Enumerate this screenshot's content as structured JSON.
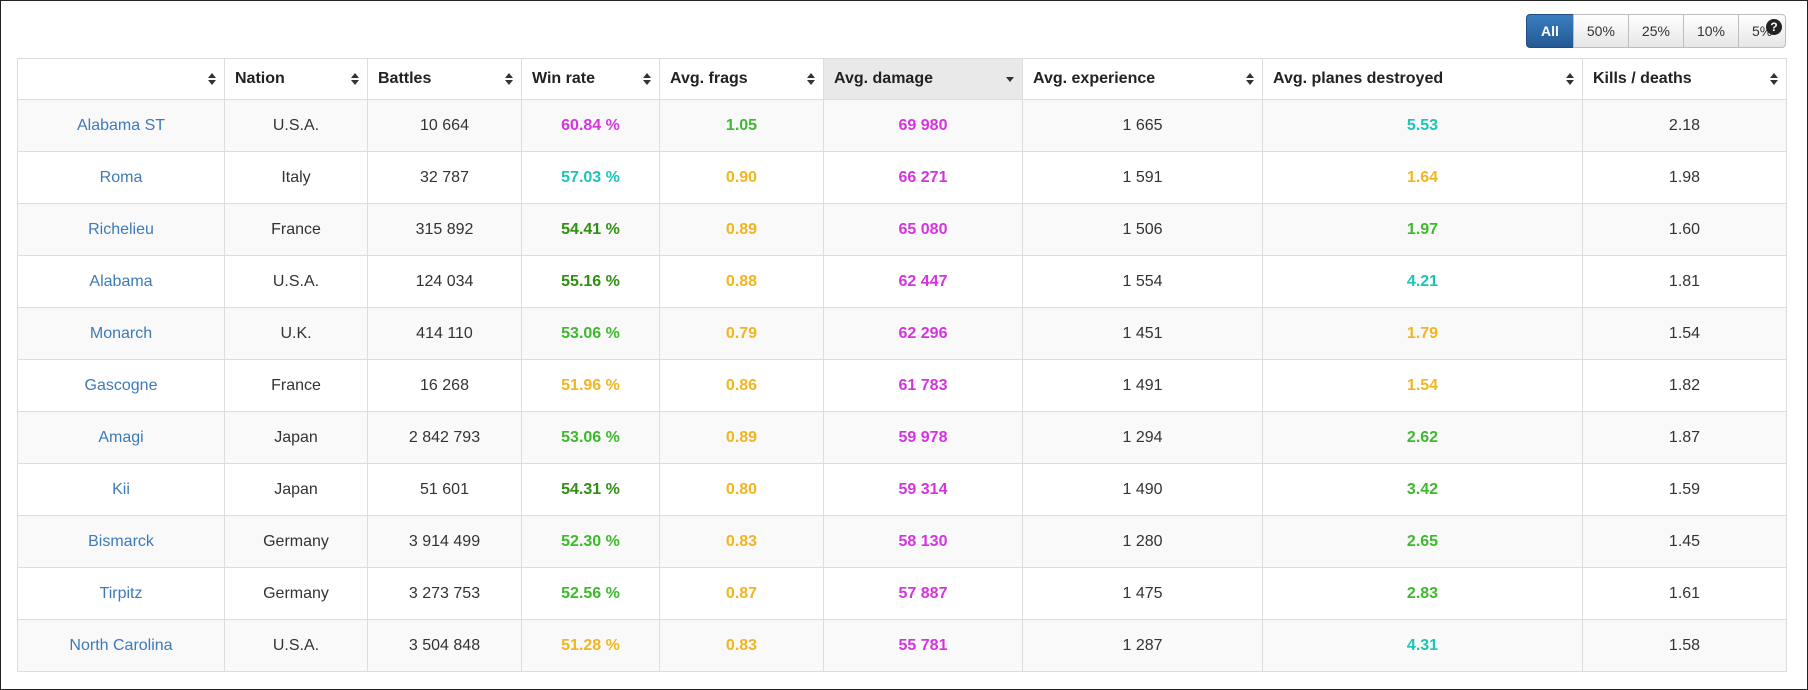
{
  "filters": {
    "buttons": [
      "All",
      "50%",
      "25%",
      "10%",
      "5%"
    ],
    "active": "All"
  },
  "help": {
    "icon": "question-circle-icon",
    "glyph": "?"
  },
  "colors": {
    "purple": "#d633e0",
    "teal": "#1cc4b8",
    "green": "#3cba2c",
    "dark_green": "#2f8f12",
    "yellow": "#f2b51f",
    "link": "#3d7ab8",
    "active_button": "#2a6aaa"
  },
  "table": {
    "headers": [
      "",
      "Nation",
      "Battles",
      "Win rate",
      "Avg. frags",
      "Avg. damage",
      "Avg. experience",
      "Avg. planes destroyed",
      "Kills / deaths"
    ],
    "sorted_column": "Avg. damage",
    "sort_direction": "desc",
    "rows": [
      {
        "ship": "Alabama ST",
        "nation": "U.S.A.",
        "battles": "10 664",
        "win_rate": "60.84 %",
        "win_rate_color": "purple",
        "frags": "1.05",
        "frags_color": "green",
        "damage": "69 980",
        "damage_color": "purple",
        "experience": "1 665",
        "planes": "5.53",
        "planes_color": "teal",
        "kd": "2.18"
      },
      {
        "ship": "Roma",
        "nation": "Italy",
        "battles": "32 787",
        "win_rate": "57.03 %",
        "win_rate_color": "teal",
        "frags": "0.90",
        "frags_color": "yellow",
        "damage": "66 271",
        "damage_color": "purple",
        "experience": "1 591",
        "planes": "1.64",
        "planes_color": "yellow",
        "kd": "1.98"
      },
      {
        "ship": "Richelieu",
        "nation": "France",
        "battles": "315 892",
        "win_rate": "54.41 %",
        "win_rate_color": "dark_green",
        "frags": "0.89",
        "frags_color": "yellow",
        "damage": "65 080",
        "damage_color": "purple",
        "experience": "1 506",
        "planes": "1.97",
        "planes_color": "green",
        "kd": "1.60"
      },
      {
        "ship": "Alabama",
        "nation": "U.S.A.",
        "battles": "124 034",
        "win_rate": "55.16 %",
        "win_rate_color": "dark_green",
        "frags": "0.88",
        "frags_color": "yellow",
        "damage": "62 447",
        "damage_color": "purple",
        "experience": "1 554",
        "planes": "4.21",
        "planes_color": "teal",
        "kd": "1.81"
      },
      {
        "ship": "Monarch",
        "nation": "U.K.",
        "battles": "414 110",
        "win_rate": "53.06 %",
        "win_rate_color": "green",
        "frags": "0.79",
        "frags_color": "yellow",
        "damage": "62 296",
        "damage_color": "purple",
        "experience": "1 451",
        "planes": "1.79",
        "planes_color": "yellow",
        "kd": "1.54"
      },
      {
        "ship": "Gascogne",
        "nation": "France",
        "battles": "16 268",
        "win_rate": "51.96 %",
        "win_rate_color": "yellow",
        "frags": "0.86",
        "frags_color": "yellow",
        "damage": "61 783",
        "damage_color": "purple",
        "experience": "1 491",
        "planes": "1.54",
        "planes_color": "yellow",
        "kd": "1.82"
      },
      {
        "ship": "Amagi",
        "nation": "Japan",
        "battles": "2 842 793",
        "win_rate": "53.06 %",
        "win_rate_color": "green",
        "frags": "0.89",
        "frags_color": "yellow",
        "damage": "59 978",
        "damage_color": "purple",
        "experience": "1 294",
        "planes": "2.62",
        "planes_color": "green",
        "kd": "1.87"
      },
      {
        "ship": "Kii",
        "nation": "Japan",
        "battles": "51 601",
        "win_rate": "54.31 %",
        "win_rate_color": "dark_green",
        "frags": "0.80",
        "frags_color": "yellow",
        "damage": "59 314",
        "damage_color": "purple",
        "experience": "1 490",
        "planes": "3.42",
        "planes_color": "green",
        "kd": "1.59"
      },
      {
        "ship": "Bismarck",
        "nation": "Germany",
        "battles": "3 914 499",
        "win_rate": "52.30 %",
        "win_rate_color": "green",
        "frags": "0.83",
        "frags_color": "yellow",
        "damage": "58 130",
        "damage_color": "purple",
        "experience": "1 280",
        "planes": "2.65",
        "planes_color": "green",
        "kd": "1.45"
      },
      {
        "ship": "Tirpitz",
        "nation": "Germany",
        "battles": "3 273 753",
        "win_rate": "52.56 %",
        "win_rate_color": "green",
        "frags": "0.87",
        "frags_color": "yellow",
        "damage": "57 887",
        "damage_color": "purple",
        "experience": "1 475",
        "planes": "2.83",
        "planes_color": "green",
        "kd": "1.61"
      },
      {
        "ship": "North Carolina",
        "nation": "U.S.A.",
        "battles": "3 504 848",
        "win_rate": "51.28 %",
        "win_rate_color": "yellow",
        "frags": "0.83",
        "frags_color": "yellow",
        "damage": "55 781",
        "damage_color": "purple",
        "experience": "1 287",
        "planes": "4.31",
        "planes_color": "teal",
        "kd": "1.58"
      }
    ]
  }
}
